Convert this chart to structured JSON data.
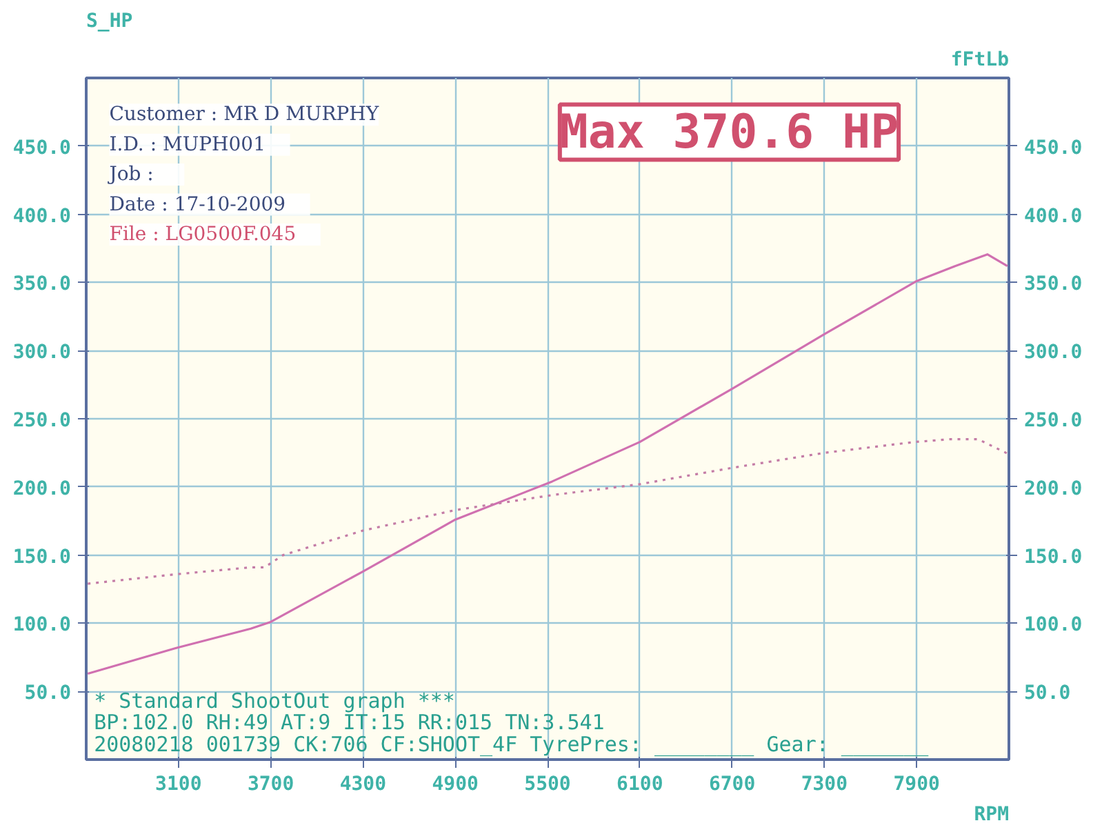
{
  "chart_data": {
    "type": "line",
    "ylabel": "S_HP",
    "y2label": "fFtLb",
    "xlabel": "RPM",
    "xlim": [
      2500,
      8500
    ],
    "xticks": [
      3100,
      3700,
      4300,
      4900,
      5500,
      6100,
      6700,
      7300,
      7900
    ],
    "ylim": [
      0,
      500
    ],
    "yticks": [
      {
        "value": 50,
        "label": "50.0"
      },
      {
        "value": 100,
        "label": "100.0"
      },
      {
        "value": 150,
        "label": "150.0"
      },
      {
        "value": 200,
        "label": "200.0"
      },
      {
        "value": 250,
        "label": "250.0"
      },
      {
        "value": 300,
        "label": "300.0"
      },
      {
        "value": 350,
        "label": "350.0"
      },
      {
        "value": 400,
        "label": "400.0"
      },
      {
        "value": 450,
        "label": "450.0"
      }
    ],
    "y2lim": [
      0,
      500
    ],
    "y2ticks": [
      {
        "value": 50,
        "label": "50.0"
      },
      {
        "value": 100,
        "label": "100.0"
      },
      {
        "value": 150,
        "label": "150.0"
      },
      {
        "value": 200,
        "label": "200.0"
      },
      {
        "value": 250,
        "label": "250.0"
      },
      {
        "value": 300,
        "label": "300.0"
      },
      {
        "value": 350,
        "label": "350.0"
      },
      {
        "value": 400,
        "label": "400.0"
      },
      {
        "value": 450,
        "label": "450.0"
      }
    ],
    "grid": true,
    "marker": "none",
    "series": [
      {
        "color": "#d070b0",
        "line_style": "solid",
        "x": [
          2510,
          3090,
          3570,
          3700,
          4300,
          4900,
          5530,
          6100,
          6700,
          7300,
          7900,
          8150,
          8360,
          8490
        ],
        "values": [
          63,
          82,
          96,
          101,
          138,
          176,
          204,
          233,
          272,
          312,
          351,
          362,
          370.6,
          362
        ]
      },
      {
        "color": "#c47ca6",
        "line_style": "dotted",
        "x": [
          2510,
          3090,
          3570,
          3660,
          3780,
          4300,
          4900,
          5530,
          6100,
          6700,
          7300,
          7890,
          8120,
          8300,
          8500
        ],
        "values": [
          129,
          136,
          141,
          141,
          150,
          168,
          183,
          194,
          202,
          214,
          225,
          233,
          235,
          235,
          224
        ]
      }
    ],
    "annotations": [
      "Customer : MR D MURPHY",
      "I.D.     : MUPH001",
      "Job      :",
      "Date     : 17-10-2009",
      "File     : LG0500F.045",
      "Max 370.6 HP",
      "*              Standard ShootOut graph ***",
      "BP:102.0 RH:49 AT:9  IT:15  RR:015 TN:3.541",
      "20080218 001739 CK:706 CF:SHOOT_4F TyrePres: ________ Gear: _______"
    ]
  }
}
